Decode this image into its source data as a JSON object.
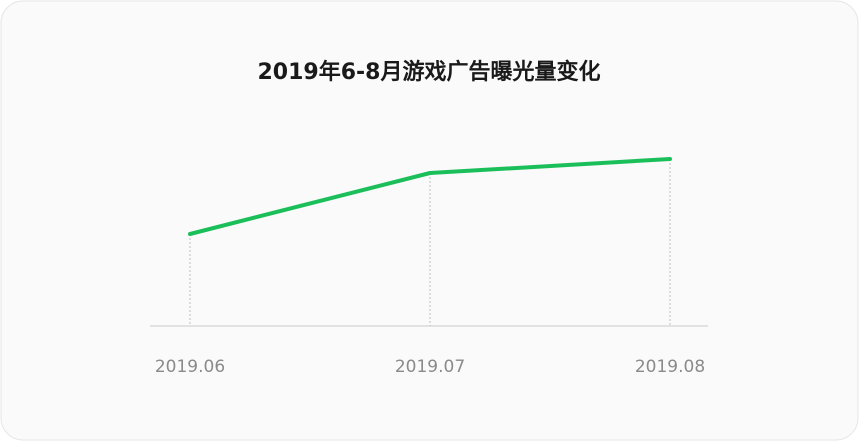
{
  "chart_data": {
    "type": "line",
    "title": "2019年6-8月游戏广告曝光量变化",
    "categories": [
      "2019.06",
      "2019.07",
      "2019.08"
    ],
    "series": [
      {
        "color": "#1bbf5a",
        "values": [
          92,
          153,
          167
        ]
      }
    ],
    "ylim": [
      0,
      200
    ]
  }
}
